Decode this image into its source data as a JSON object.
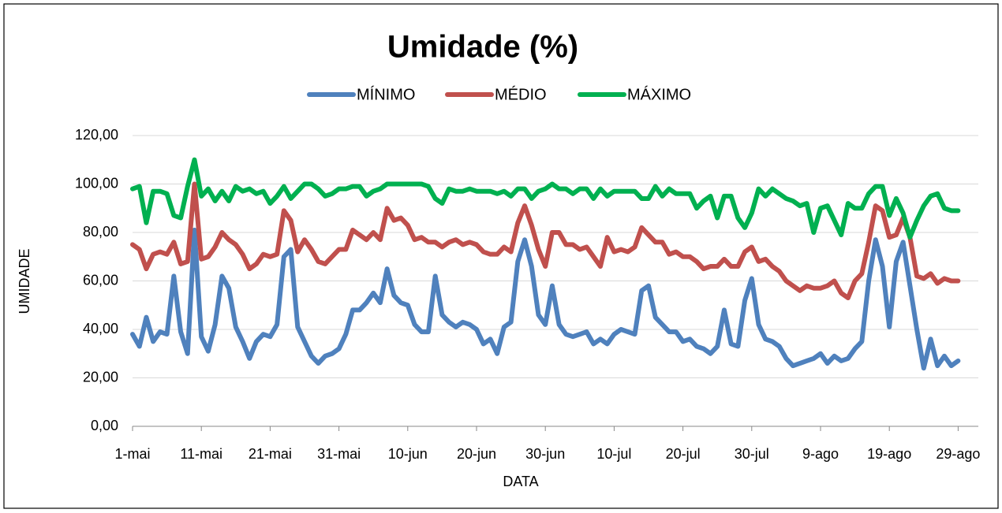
{
  "chart_data": {
    "type": "line",
    "title": "Umidade (%)",
    "x_label": "DATA",
    "y_label": "UMIDADE",
    "categories": [
      "1-mai",
      null,
      null,
      null,
      null,
      null,
      null,
      null,
      null,
      null,
      "11-mai",
      null,
      null,
      null,
      null,
      null,
      null,
      null,
      null,
      null,
      "21-mai",
      null,
      null,
      null,
      null,
      null,
      null,
      null,
      null,
      null,
      "31-mai",
      null,
      null,
      null,
      null,
      null,
      null,
      null,
      null,
      null,
      "10-jun",
      null,
      null,
      null,
      null,
      null,
      null,
      null,
      null,
      null,
      "20-jun",
      null,
      null,
      null,
      null,
      null,
      null,
      null,
      null,
      null,
      "30-jun",
      null,
      null,
      null,
      null,
      null,
      null,
      null,
      null,
      null,
      "10-jul",
      null,
      null,
      null,
      null,
      null,
      null,
      null,
      null,
      null,
      "20-jul",
      null,
      null,
      null,
      null,
      null,
      null,
      null,
      null,
      null,
      "30-jul",
      null,
      null,
      null,
      null,
      null,
      null,
      null,
      null,
      null,
      "9-ago",
      null,
      null,
      null,
      null,
      null,
      null,
      null,
      null,
      null,
      "19-ago",
      null,
      null,
      null,
      null,
      null,
      null,
      null,
      null,
      null,
      "29-ago"
    ],
    "series": [
      {
        "name": "MÍNIMO",
        "color": "#4f81bd",
        "values": [
          38,
          33,
          45,
          35,
          39,
          38,
          62,
          39,
          30,
          81,
          37,
          31,
          42,
          62,
          57,
          41,
          35,
          28,
          35,
          38,
          37,
          42,
          70,
          73,
          41,
          35,
          29,
          26,
          29,
          30,
          32,
          38,
          48,
          48,
          51,
          55,
          51,
          65,
          54,
          51,
          50,
          42,
          39,
          39,
          62,
          46,
          43,
          41,
          43,
          42,
          40,
          34,
          36,
          30,
          41,
          43,
          68,
          77,
          66,
          46,
          42,
          58,
          42,
          38,
          37,
          38,
          39,
          34,
          36,
          34,
          38,
          40,
          39,
          38,
          56,
          58,
          45,
          42,
          39,
          39,
          35,
          36,
          33,
          32,
          30,
          33,
          48,
          34,
          33,
          52,
          61,
          42,
          36,
          35,
          33,
          28,
          25,
          26,
          27,
          28,
          30,
          26,
          29,
          27,
          28,
          32,
          35,
          60,
          77,
          66,
          41,
          68,
          76,
          58,
          40,
          24,
          36,
          25,
          29,
          25,
          27
        ]
      },
      {
        "name": "MÉDIO",
        "color": "#c0504d",
        "values": [
          75,
          73,
          65,
          71,
          72,
          71,
          76,
          67,
          68,
          100,
          69,
          70,
          74,
          80,
          77,
          75,
          71,
          65,
          67,
          71,
          70,
          71,
          89,
          85,
          72,
          77,
          73,
          68,
          67,
          70,
          73,
          73,
          81,
          79,
          77,
          80,
          77,
          90,
          85,
          86,
          83,
          77,
          78,
          76,
          76,
          74,
          76,
          77,
          75,
          76,
          75,
          72,
          71,
          71,
          74,
          72,
          84,
          91,
          83,
          73,
          66,
          80,
          80,
          75,
          75,
          73,
          74,
          70,
          66,
          78,
          72,
          73,
          72,
          74,
          82,
          79,
          76,
          76,
          71,
          72,
          70,
          70,
          68,
          65,
          66,
          66,
          69,
          66,
          66,
          72,
          74,
          68,
          69,
          66,
          64,
          60,
          58,
          56,
          58,
          57,
          57,
          58,
          60,
          55,
          53,
          60,
          63,
          76,
          91,
          89,
          78,
          79,
          86,
          78,
          62,
          61,
          63,
          59,
          61,
          60,
          60
        ]
      },
      {
        "name": "MÁXIMO",
        "color": "#00b050",
        "values": [
          98,
          99,
          84,
          97,
          97,
          96,
          87,
          86,
          99,
          110,
          95,
          98,
          93,
          97,
          93,
          99,
          97,
          98,
          96,
          97,
          92,
          95,
          99,
          94,
          97,
          100,
          100,
          98,
          95,
          96,
          98,
          98,
          99,
          99,
          95,
          97,
          98,
          100,
          100,
          100,
          100,
          100,
          100,
          99,
          94,
          92,
          98,
          97,
          97,
          98,
          97,
          97,
          97,
          96,
          97,
          95,
          98,
          98,
          94,
          97,
          98,
          100,
          98,
          98,
          96,
          98,
          98,
          94,
          98,
          95,
          97,
          97,
          97,
          97,
          94,
          94,
          99,
          95,
          98,
          96,
          96,
          96,
          90,
          93,
          95,
          86,
          95,
          95,
          86,
          82,
          88,
          98,
          95,
          98,
          96,
          94,
          93,
          91,
          92,
          80,
          90,
          91,
          85,
          79,
          92,
          90,
          90,
          96,
          99,
          99,
          87,
          94,
          88,
          78,
          85,
          91,
          95,
          96,
          90,
          89,
          89
        ]
      }
    ],
    "ylim": [
      0,
      120
    ],
    "yticks": [
      {
        "value": 0,
        "label": "0,00"
      },
      {
        "value": 20,
        "label": "20,00"
      },
      {
        "value": 40,
        "label": "40,00"
      },
      {
        "value": 60,
        "label": "60,00"
      },
      {
        "value": 80,
        "label": "80,00"
      },
      {
        "value": 100,
        "label": "100,00"
      },
      {
        "value": 120,
        "label": "120,00"
      }
    ],
    "grid": true,
    "legend": "top"
  }
}
